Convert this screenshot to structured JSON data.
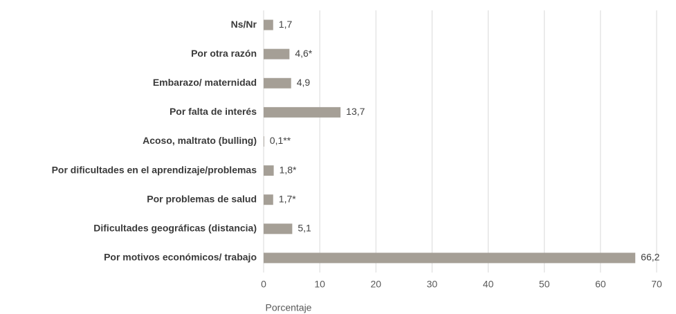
{
  "chart_data": {
    "type": "bar",
    "orientation": "horizontal",
    "categories": [
      "Ns/Nr",
      "Por otra razón",
      "Embarazo/ maternidad",
      "Por falta de interés",
      "Acoso, maltrato (bulling)",
      "Por dificultades en el aprendizaje/problemas",
      "Por problemas de salud",
      "Dificultades geográficas (distancia)",
      "Por motivos económicos/ trabajo"
    ],
    "values": [
      1.7,
      4.6,
      4.9,
      13.7,
      0.1,
      1.8,
      1.7,
      5.1,
      66.2
    ],
    "value_labels": [
      "1,7",
      "4,6*",
      "4,9",
      "13,7",
      "0,1**",
      "1,8*",
      "1,7*",
      "5,1",
      "66,2"
    ],
    "color": "#a59f96",
    "xlim": [
      0,
      70
    ],
    "xticks": [
      0,
      10,
      20,
      30,
      40,
      50,
      60,
      70
    ],
    "x_label": "Porcentaje",
    "grid": true
  }
}
